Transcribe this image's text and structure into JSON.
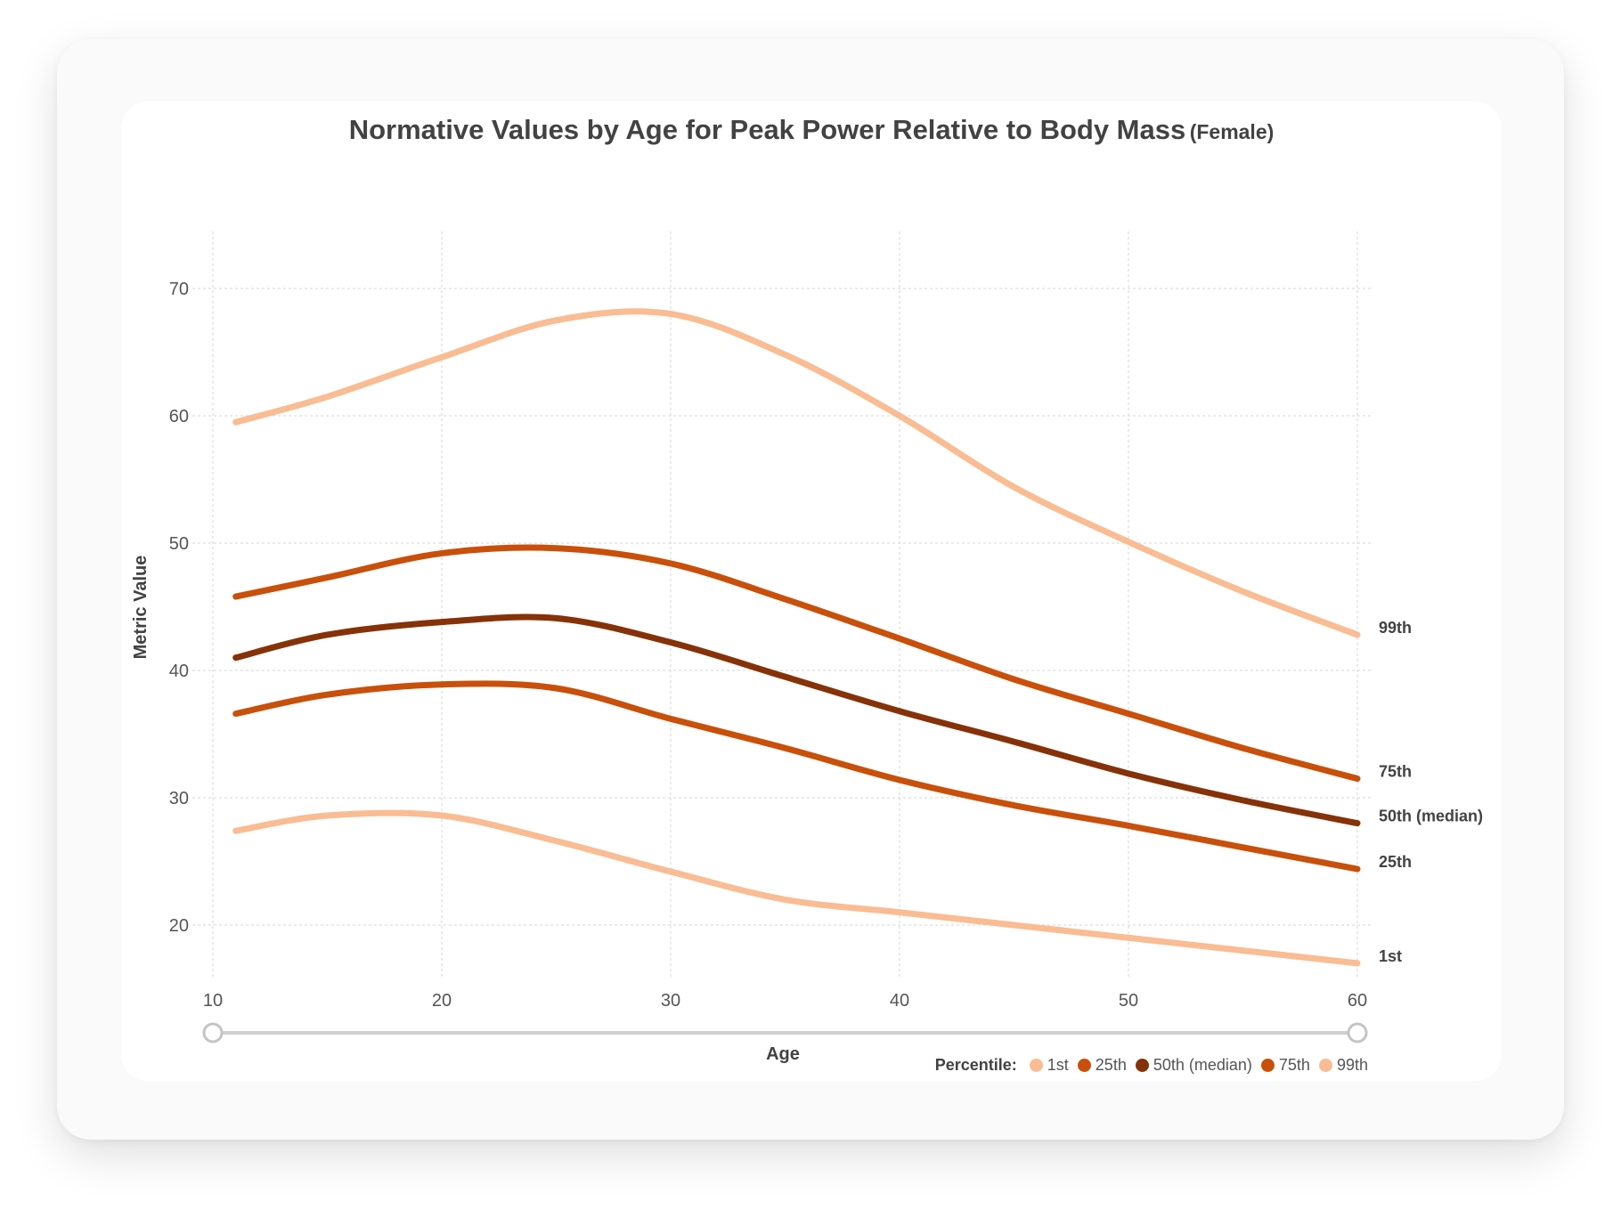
{
  "chart_data": {
    "type": "line",
    "title": "Normative Values by Age for Peak Power Relative to Body Mass",
    "subtitle": "(Female)",
    "xlabel": "Age",
    "ylabel": "Metric Value",
    "xlim": [
      10,
      60
    ],
    "ylim": [
      15,
      74
    ],
    "x_ticks": [
      10,
      20,
      30,
      40,
      50,
      60
    ],
    "y_ticks": [
      20,
      30,
      40,
      50,
      60,
      70
    ],
    "grid": true,
    "legend_title": "Percentile:",
    "legend_position": "bottom-right",
    "x": [
      11,
      15,
      20,
      25,
      30,
      35,
      40,
      45,
      50,
      55,
      60
    ],
    "series": [
      {
        "name": "1st",
        "label": "1st",
        "color": "#f9bc93",
        "values": [
          27.4,
          28.6,
          28.6,
          26.6,
          24.2,
          22.0,
          21.0,
          20.0,
          19.0,
          18.0,
          17.0
        ]
      },
      {
        "name": "25th",
        "label": "25th",
        "color": "#c8500b",
        "values": [
          36.6,
          38.1,
          38.9,
          38.6,
          36.2,
          33.9,
          31.4,
          29.4,
          27.8,
          26.1,
          24.4
        ]
      },
      {
        "name": "50th (median)",
        "label": "50th (median)",
        "color": "#863208",
        "values": [
          41.0,
          42.8,
          43.8,
          44.1,
          42.2,
          39.5,
          36.8,
          34.4,
          31.9,
          29.8,
          28.0
        ]
      },
      {
        "name": "75th",
        "label": "75th",
        "color": "#c8500b",
        "values": [
          45.8,
          47.3,
          49.2,
          49.6,
          48.4,
          45.6,
          42.5,
          39.3,
          36.6,
          33.9,
          31.5
        ]
      },
      {
        "name": "99th",
        "label": "99th",
        "color": "#f9bc93",
        "values": [
          59.5,
          61.5,
          64.6,
          67.5,
          68.0,
          64.8,
          60.0,
          54.4,
          50.1,
          46.2,
          42.8
        ]
      }
    ]
  },
  "range_slider": {
    "min": 10,
    "max": 60
  }
}
